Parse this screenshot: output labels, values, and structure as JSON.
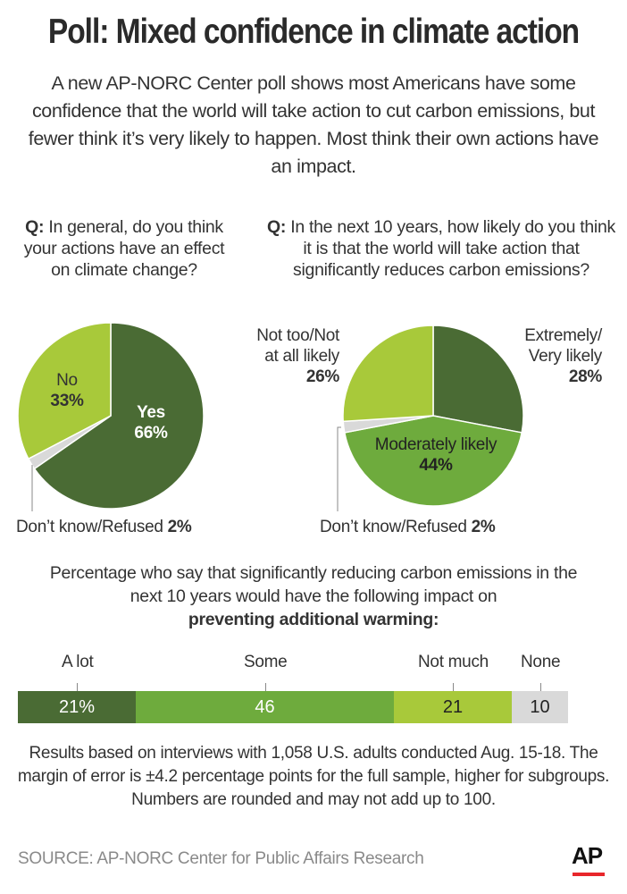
{
  "header": {
    "title": "Poll: Mixed confidence in climate action",
    "subtitle": "A new AP-NORC Center poll shows most Americans have some confidence that the world will take action to cut carbon emissions, but fewer think it’s very likely to happen. Most think their own actions have an impact."
  },
  "chart_data": [
    {
      "type": "pie",
      "title": "Q: In general, do you think your actions have an effect on climate change?",
      "question_prefix": "Q:",
      "question_text": "In general, do you think your actions have an effect on climate change?",
      "slices": [
        {
          "label": "Yes",
          "value": 66,
          "display": "66%",
          "color": "#4a6b34"
        },
        {
          "label": "Don't know/Refused",
          "value": 2,
          "display": "2%",
          "color": "#d9d9d9"
        },
        {
          "label": "No",
          "value": 33,
          "display": "33%",
          "color": "#a8c93a"
        }
      ]
    },
    {
      "type": "pie",
      "title": "Q: In the next 10 years, how likely do you think it is that the world will take action that significantly reduces carbon emissions?",
      "question_prefix": "Q:",
      "question_text": "In the next 10 years, how likely do you think it is that the world will take action that significantly reduces carbon emissions?",
      "slices": [
        {
          "label": "Extremely/ Very likely",
          "value": 28,
          "display": "28%",
          "color": "#4a6b34"
        },
        {
          "label": "Moderately likely",
          "value": 44,
          "display": "44%",
          "color": "#6eab3d"
        },
        {
          "label": "Don't know/Refused",
          "value": 2,
          "display": "2%",
          "color": "#d9d9d9"
        },
        {
          "label": "Not too/Not at all likely",
          "value": 26,
          "display": "26%",
          "color": "#a8c93a"
        }
      ]
    },
    {
      "type": "bar",
      "orientation": "horizontal-stacked",
      "title": "Percentage who say that significantly reducing carbon emissions in the next 10 years would have the following impact on preventing additional warming:",
      "categories": [
        "A lot",
        "Some",
        "Not much",
        "None"
      ],
      "values": [
        21,
        46,
        21,
        10
      ],
      "value_labels": [
        "21%",
        "46",
        "21",
        "10"
      ],
      "colors": [
        "#4a6b34",
        "#6eab3d",
        "#a8c93a",
        "#d9d9d9"
      ]
    }
  ],
  "bar_section": {
    "line1": "Percentage who say that significantly reducing carbon emissions in the",
    "line2": "next 10 years would have the following impact on",
    "line3": "preventing additional warming:"
  },
  "labels": {
    "pie1_yes": "Yes",
    "pie1_yes_pct": "66%",
    "pie1_no": "No",
    "pie1_no_pct": "33%",
    "pie1_dk": "Don’t know/Refused",
    "pie1_dk_pct": "2%",
    "pie2_ext_1": "Extremely/",
    "pie2_ext_2": "Very likely",
    "pie2_ext_pct": "28%",
    "pie2_mod": "Moderately likely",
    "pie2_mod_pct": "44%",
    "pie2_not_1": "Not too/Not",
    "pie2_not_2": "at all likely",
    "pie2_not_pct": "26%",
    "pie2_dk": "Don’t know/Refused",
    "pie2_dk_pct": "2%"
  },
  "footer": {
    "notes": "Results based on interviews with 1,058 U.S. adults conducted Aug. 15-18. The margin of error is ±4.2 percentage points for the full sample, higher for subgroups. Numbers are rounded and may not add up to 100.",
    "source": "SOURCE: AP-NORC Center for Public Affairs Research",
    "logo": "AP"
  }
}
